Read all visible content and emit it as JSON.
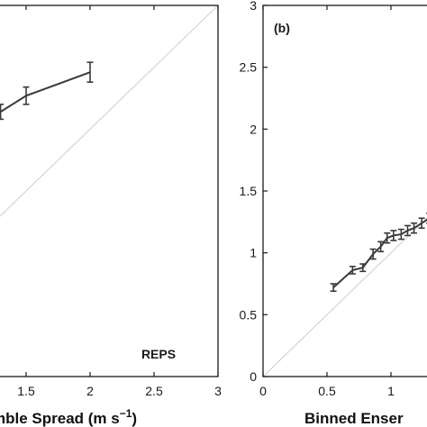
{
  "chart_data": [
    {
      "type": "line",
      "xlabel": "Binned Ensemble Spread (m s",
      "xlabel_superscript": "−1",
      "xlabel_suffix": ")",
      "xlabel_visible": "mble Spread (m s",
      "annotation": "REPS",
      "xlim": [
        0,
        3
      ],
      "ylim": [
        0,
        3
      ],
      "x_tick_labels": [
        "1.5",
        "2",
        "2.5",
        "3"
      ],
      "diagonal": true,
      "series": [
        {
          "x": [
            1.3,
            1.5,
            2.0
          ],
          "y": [
            2.14,
            2.27,
            2.46
          ],
          "err": [
            0.06,
            0.07,
            0.08
          ]
        }
      ],
      "colors": {
        "line": "#3a3a3a",
        "diagonal": "#d4d4d4",
        "axes": "#1a1a1a"
      }
    },
    {
      "type": "line",
      "panel_label": "(b)",
      "xlabel_visible": "Binned Enser",
      "xlim": [
        0,
        3
      ],
      "ylim": [
        0,
        3
      ],
      "x_tick_labels": [
        "0",
        "0.5",
        "1"
      ],
      "y_tick_labels": [
        "0",
        "0.5",
        "1",
        "1.5",
        "2",
        "2.5",
        "3"
      ],
      "diagonal": true,
      "series": [
        {
          "x": [
            0.55,
            0.7,
            0.78,
            0.86,
            0.92,
            0.97,
            1.02,
            1.08,
            1.13,
            1.18,
            1.24,
            1.3,
            1.36
          ],
          "y": [
            0.72,
            0.86,
            0.88,
            0.99,
            1.05,
            1.12,
            1.14,
            1.15,
            1.18,
            1.2,
            1.24,
            1.28,
            1.34
          ],
          "err": [
            0.03,
            0.03,
            0.03,
            0.04,
            0.04,
            0.04,
            0.04,
            0.04,
            0.04,
            0.04,
            0.04,
            0.04,
            0.04
          ]
        }
      ],
      "colors": {
        "line": "#3a3a3a",
        "diagonal": "#d4d4d4",
        "axes": "#1a1a1a"
      }
    }
  ]
}
